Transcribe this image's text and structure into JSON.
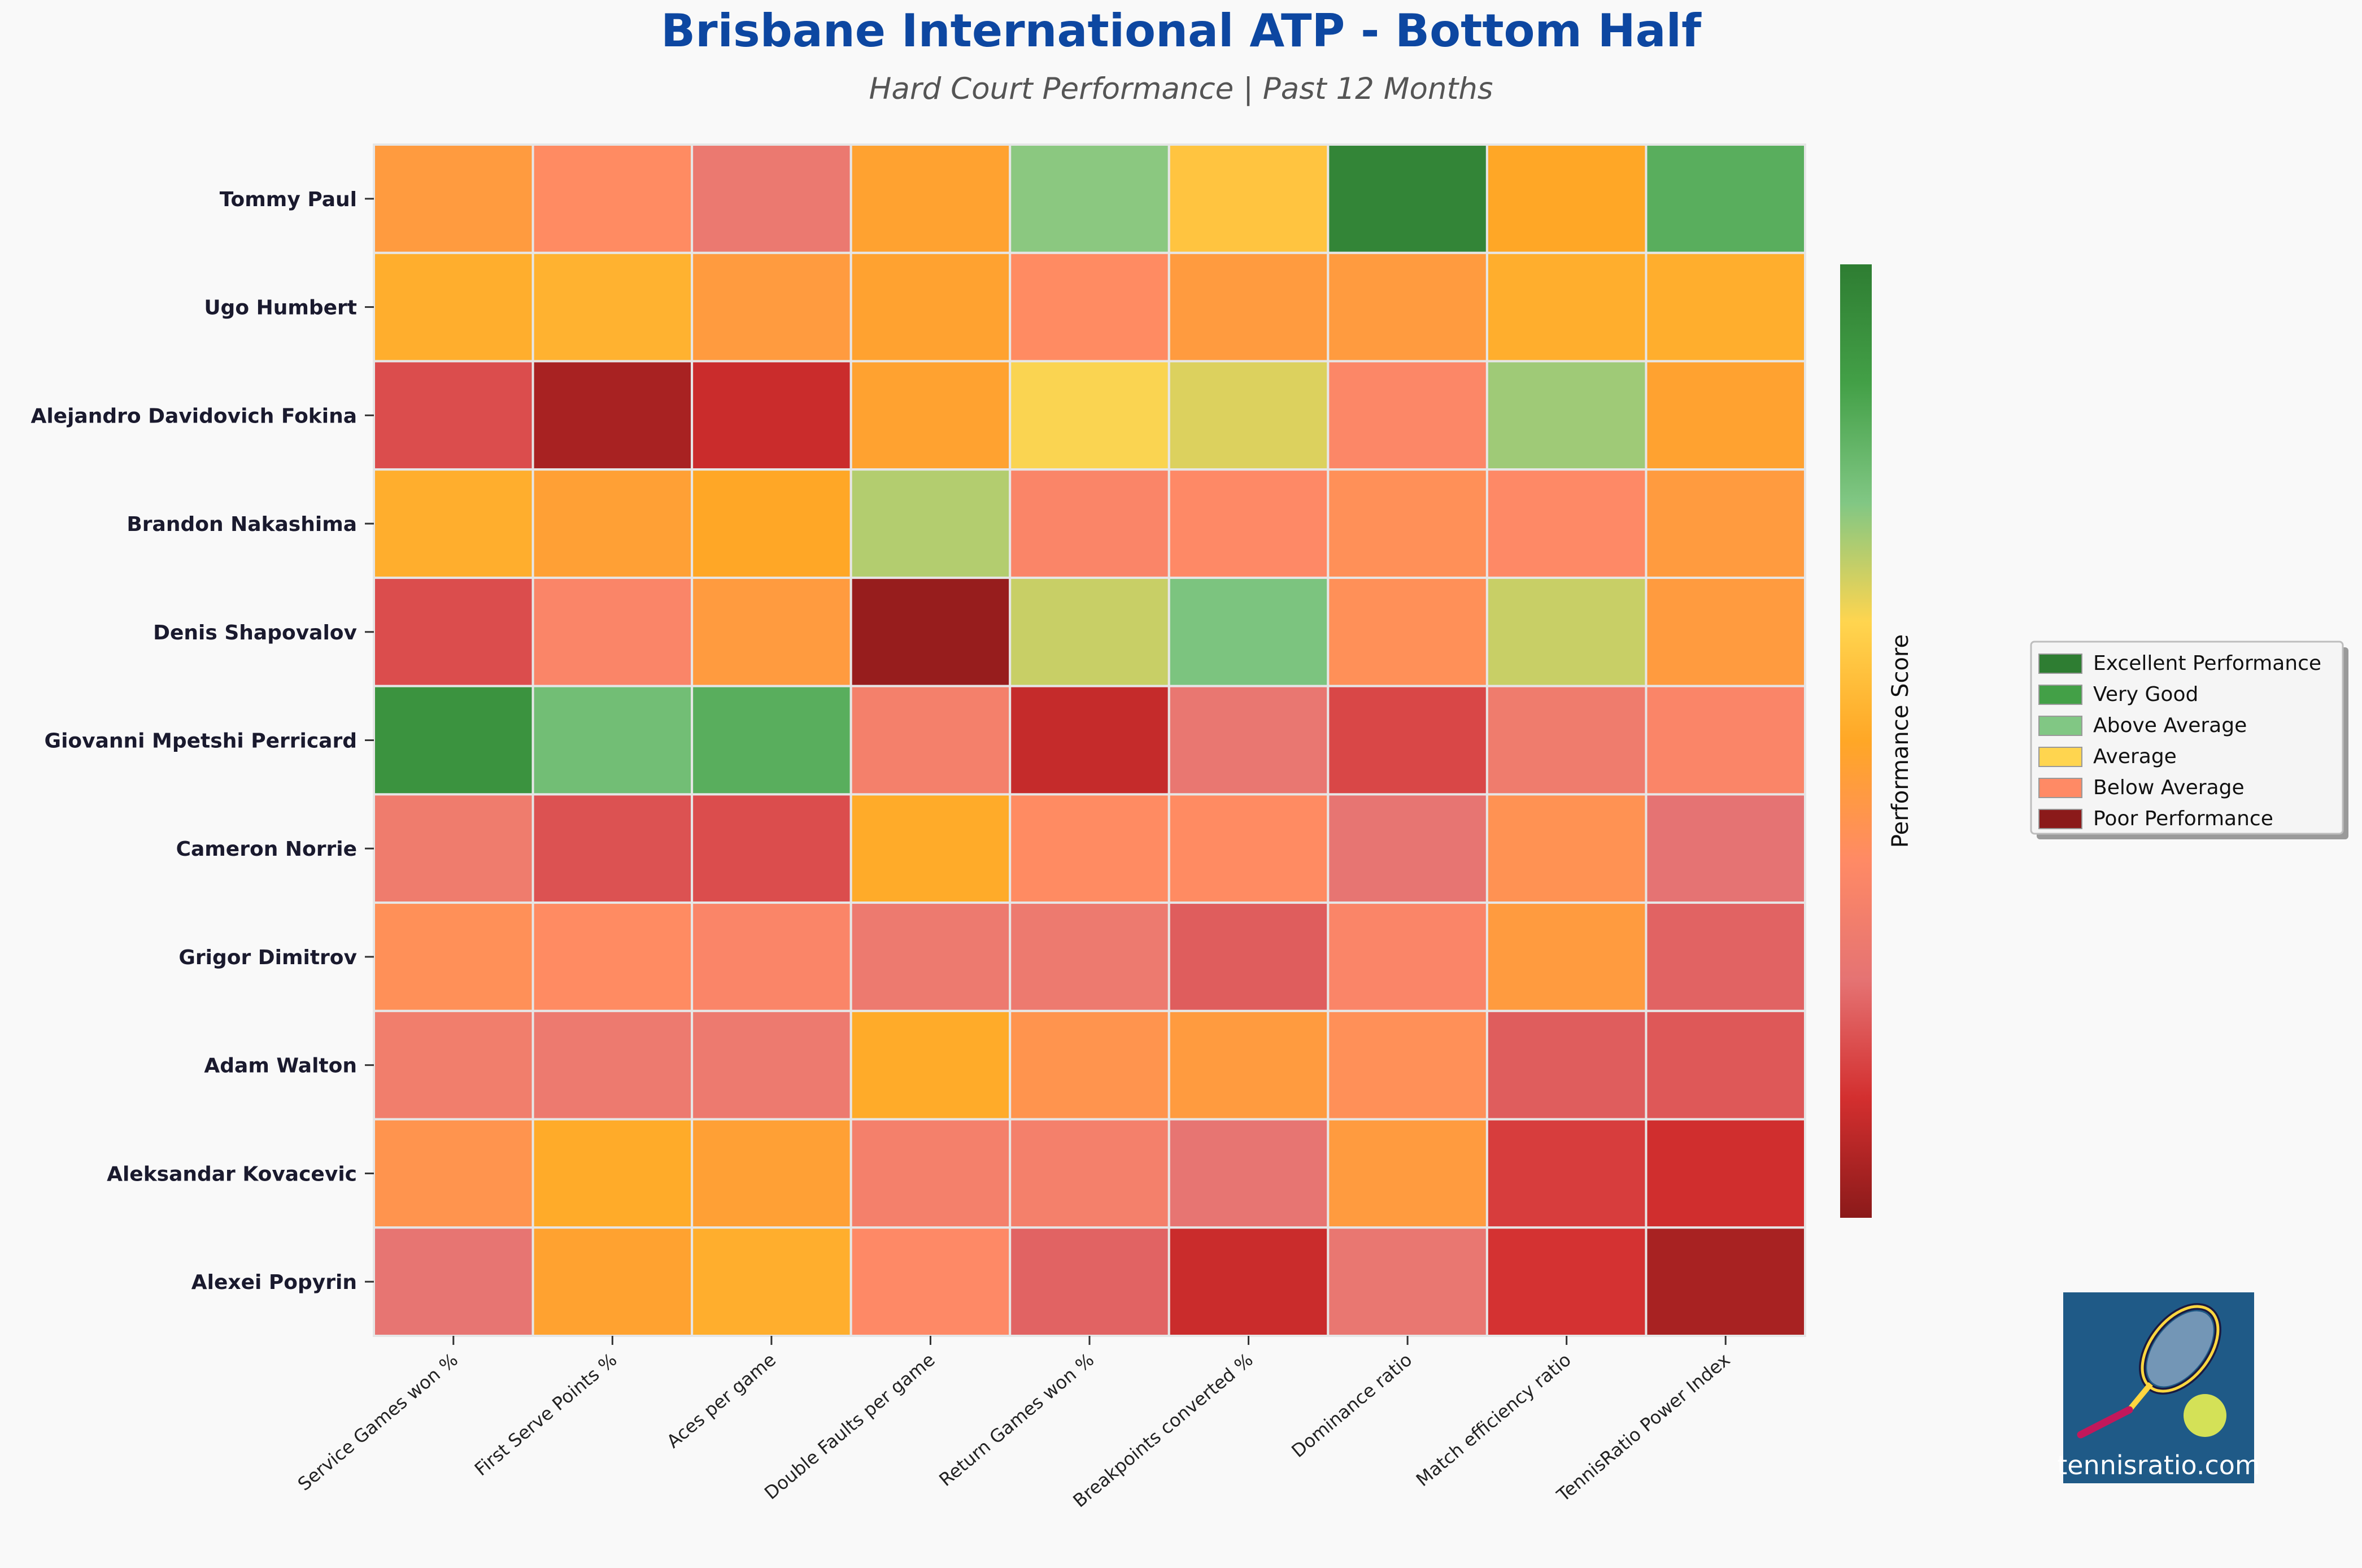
{
  "chart_data": {
    "type": "heatmap",
    "title": "Brisbane International ATP - Bottom Half",
    "subtitle": "Hard Court Performance | Past 12 Months",
    "rows": [
      "Tommy Paul",
      "Ugo Humbert",
      "Alejandro Davidovich Fokina",
      "Brandon Nakashima",
      "Denis Shapovalov",
      "Giovanni Mpetshi Perricard",
      "Cameron Norrie",
      "Grigor Dimitrov",
      "Adam Walton",
      "Aleksandar Kovacevic",
      "Alexei Popyrin"
    ],
    "columns": [
      "Service Games won %",
      "First Serve Points %",
      "Aces per game",
      "Double Faults per game",
      "Return Games won %",
      "Breakpoints converted %",
      "Dominance ratio",
      "Match efficiency ratio",
      "TennisRatio Power Index"
    ],
    "values": [
      [
        0.45,
        0.38,
        0.28,
        0.48,
        0.74,
        0.58,
        0.97,
        0.5,
        0.83
      ],
      [
        0.52,
        0.53,
        0.45,
        0.48,
        0.38,
        0.45,
        0.45,
        0.52,
        0.52
      ],
      [
        0.18,
        0.05,
        0.11,
        0.48,
        0.63,
        0.66,
        0.36,
        0.72,
        0.48
      ],
      [
        0.52,
        0.47,
        0.5,
        0.7,
        0.35,
        0.37,
        0.4,
        0.37,
        0.45
      ],
      [
        0.18,
        0.35,
        0.45,
        0.02,
        0.68,
        0.76,
        0.4,
        0.68,
        0.45
      ],
      [
        0.92,
        0.78,
        0.83,
        0.32,
        0.1,
        0.27,
        0.17,
        0.3,
        0.35
      ],
      [
        0.3,
        0.19,
        0.18,
        0.51,
        0.38,
        0.38,
        0.26,
        0.41,
        0.25
      ],
      [
        0.4,
        0.38,
        0.35,
        0.29,
        0.29,
        0.21,
        0.35,
        0.45,
        0.22
      ],
      [
        0.31,
        0.29,
        0.29,
        0.51,
        0.42,
        0.45,
        0.4,
        0.21,
        0.2
      ],
      [
        0.42,
        0.51,
        0.47,
        0.32,
        0.32,
        0.26,
        0.45,
        0.15,
        0.12
      ],
      [
        0.26,
        0.48,
        0.52,
        0.37,
        0.22,
        0.11,
        0.27,
        0.13,
        0.05
      ]
    ],
    "scale": [
      0,
      1
    ],
    "colorbar_label": "Performance Score",
    "colormap": [
      "#8b1a1a",
      "#d32f2f",
      "#e57373",
      "#ff8a65",
      "#ffa726",
      "#ffd54f",
      "#81c784",
      "#43a047",
      "#2e7d32"
    ],
    "legend_placement": "right",
    "legend": [
      {
        "label": "Excellent Performance",
        "color": "#2e7d32"
      },
      {
        "label": "Very Good",
        "color": "#43a047"
      },
      {
        "label": "Above Average",
        "color": "#81c784"
      },
      {
        "label": "Average",
        "color": "#ffd54f"
      },
      {
        "label": "Below Average",
        "color": "#ff8a65"
      },
      {
        "label": "Poor Performance",
        "color": "#8b1a1a"
      }
    ]
  },
  "logo": {
    "text": "tennisratio.com",
    "background": "#1f5a87",
    "ball_color": "#d4e157"
  },
  "colors": {
    "title": "#0d47a1",
    "background": "#f9f9f9",
    "cell_border": "#e6e6e6"
  }
}
